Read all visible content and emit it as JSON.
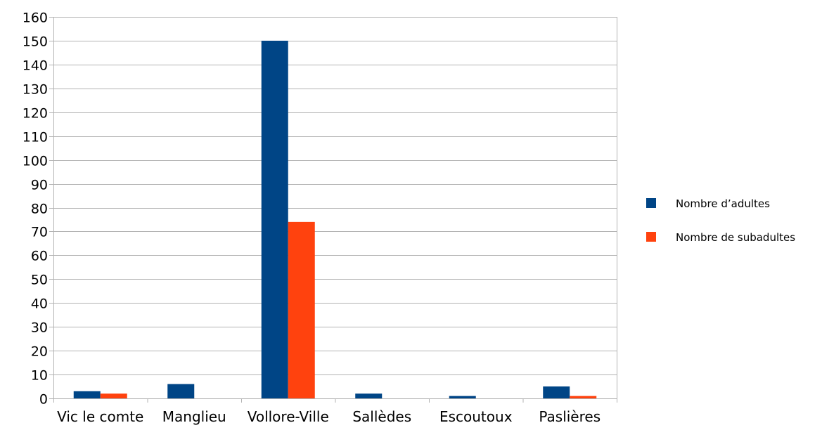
{
  "chart_data": {
    "type": "bar",
    "title": "",
    "xlabel": "",
    "ylabel": "",
    "categories": [
      "Vic le comte",
      "Manglieu",
      "Vollore-Ville",
      "Sallèdes",
      "Escoutoux",
      "Paslières"
    ],
    "series": [
      {
        "name": "Nombre d’adultes",
        "color": "#004586",
        "values": [
          3,
          6,
          150,
          2,
          1,
          5
        ]
      },
      {
        "name": "Nombre de subadultes",
        "color": "#ff420e",
        "values": [
          2,
          0,
          74,
          0,
          0,
          1
        ]
      }
    ],
    "ylim": [
      0,
      160
    ],
    "yticks": [
      0,
      10,
      20,
      30,
      40,
      50,
      60,
      70,
      80,
      90,
      100,
      110,
      120,
      130,
      140,
      150,
      160
    ],
    "grid": true,
    "grid_color": "#b3b3b3",
    "legend_position": "right"
  }
}
